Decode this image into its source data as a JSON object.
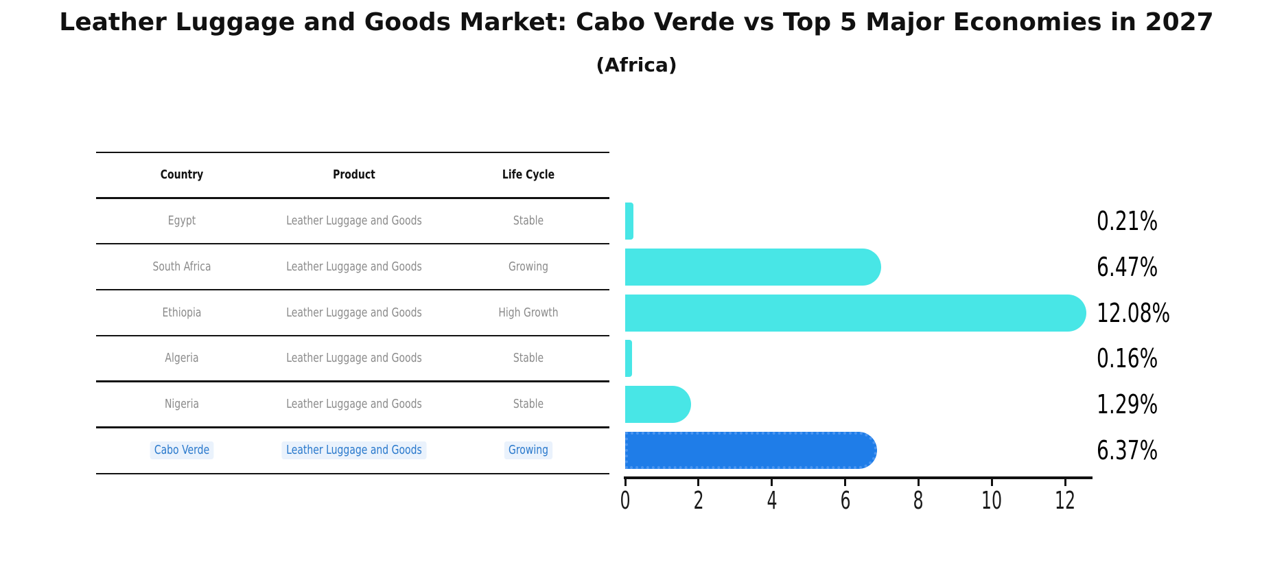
{
  "title": "Leather Luggage and Goods Market: Cabo Verde vs Top 5 Major Economies in 2027",
  "subtitle": "(Africa)",
  "table": {
    "headers": {
      "country": "Country",
      "product": "Product",
      "life_cycle": "Life Cycle"
    },
    "rows": [
      {
        "country": "Egypt",
        "product": "Leather Luggage and Goods",
        "life_cycle": "Stable",
        "value_label": "0.21%",
        "highlight": false
      },
      {
        "country": "South Africa",
        "product": "Leather Luggage and Goods",
        "life_cycle": "Growing",
        "value_label": "6.47%",
        "highlight": false
      },
      {
        "country": "Ethiopia",
        "product": "Leather Luggage and Goods",
        "life_cycle": "High Growth",
        "value_label": "12.08%",
        "highlight": false
      },
      {
        "country": "Algeria",
        "product": "Leather Luggage and Goods",
        "life_cycle": "Stable",
        "value_label": "0.16%",
        "highlight": false
      },
      {
        "country": "Nigeria",
        "product": "Leather Luggage and Goods",
        "life_cycle": "Stable",
        "value_label": "1.29%",
        "highlight": false
      },
      {
        "country": "Cabo Verde",
        "product": "Leather Luggage and Goods",
        "life_cycle": "Growing",
        "value_label": "6.37%",
        "highlight": true
      }
    ]
  },
  "chart_data": {
    "type": "bar",
    "orientation": "horizontal",
    "title": "Leather Luggage and Goods Market: Cabo Verde vs Top 5 Major Economies in 2027",
    "subtitle": "(Africa)",
    "categories": [
      "Egypt",
      "South Africa",
      "Ethiopia",
      "Algeria",
      "Nigeria",
      "Cabo Verde"
    ],
    "values": [
      0.21,
      6.47,
      12.08,
      0.16,
      1.29,
      6.37
    ],
    "value_labels": [
      "0.21%",
      "6.47%",
      "12.08%",
      "0.16%",
      "1.29%",
      "6.37%"
    ],
    "xlabel": "",
    "ylabel": "",
    "xlim": [
      0,
      12.7
    ],
    "xticks": [
      0,
      2,
      4,
      6,
      8,
      10,
      12
    ],
    "grid": false,
    "legend": "none",
    "highlight_category": "Cabo Verde",
    "bar_color": "#48e6e6",
    "highlight_bar_color": "#1f7de8",
    "highlight_border_color": "#4a95f0"
  },
  "colors": {
    "background": "#ffffff",
    "title_text": "#111111",
    "table_line": "#111111",
    "table_header_text": "#111111",
    "table_row_text": "#8a8a8a",
    "highlight_text": "#2878cc",
    "highlight_text_bg": "#eaf2fc",
    "axis": "#111111",
    "value_label_text": "#000000"
  }
}
